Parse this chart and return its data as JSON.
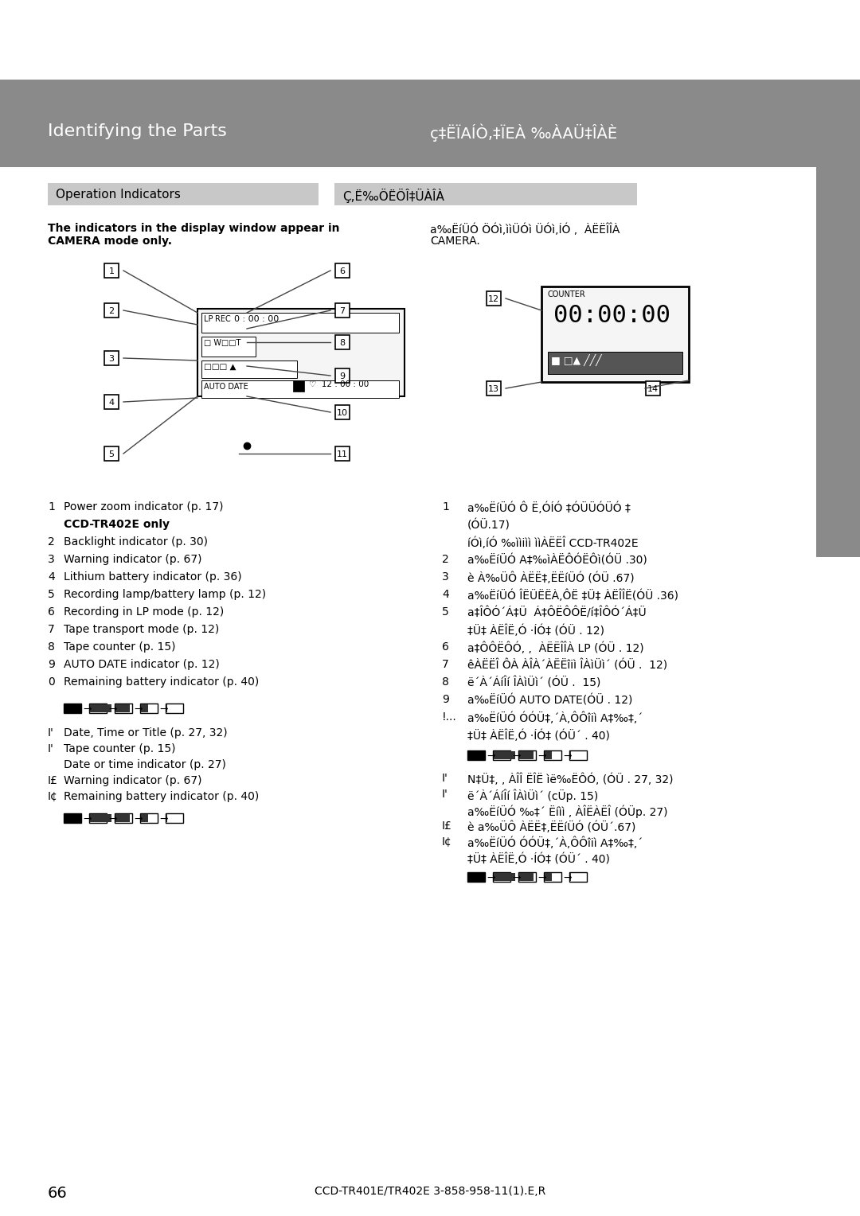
{
  "page_bg": "#ffffff",
  "header_bg": "#8a8a8a",
  "subheader_bg": "#c8c8c8",
  "header_text_color": "#ffffff",
  "header_text": "Identifying the Parts",
  "header_text_right": "ç‡ËÏAÍÒ,‡ÏEÀ ‰ÀAÜ‡ÎÀÈ",
  "subheader_text": "Operation Indicators",
  "subheader_text_right": "Ç,Ë‰ÖËÖÎ‡ÜÀÎÀ",
  "intro_text_left": "The indicators in the display window appear in\nCAMERA mode only.",
  "intro_text_right": "aì‰ËíÜÓ ˆÖÓì,ìiÜÓì ÜÓì,ÍÓ ,  ÀËËÎÎÀ\nCAMERA.",
  "list_items_left": [
    [
      "1",
      "Power zoom indicator (p. 17)"
    ],
    [
      "",
      "CCD-TR402E only"
    ],
    [
      "2",
      "Backlight indicator (p. 30)"
    ],
    [
      "3",
      "Warning indicator (p. 67)"
    ],
    [
      "4",
      "Lithium battery indicator (p. 36)"
    ],
    [
      "5",
      "Recording lamp/battery lamp (p. 12)"
    ],
    [
      "6",
      "Recording in LP mode (p. 12)"
    ],
    [
      "7",
      "Tape transport mode (p. 12)"
    ],
    [
      "8",
      "Tape counter (p. 15)"
    ],
    [
      "9",
      "AUTO DATE indicator (p. 12)"
    ],
    [
      "0",
      "Remaining battery indicator (p. 40)"
    ]
  ],
  "footer_text": "CCD-TR401E/TR402E 3-858-958-11(1).E,R",
  "page_number": "66"
}
